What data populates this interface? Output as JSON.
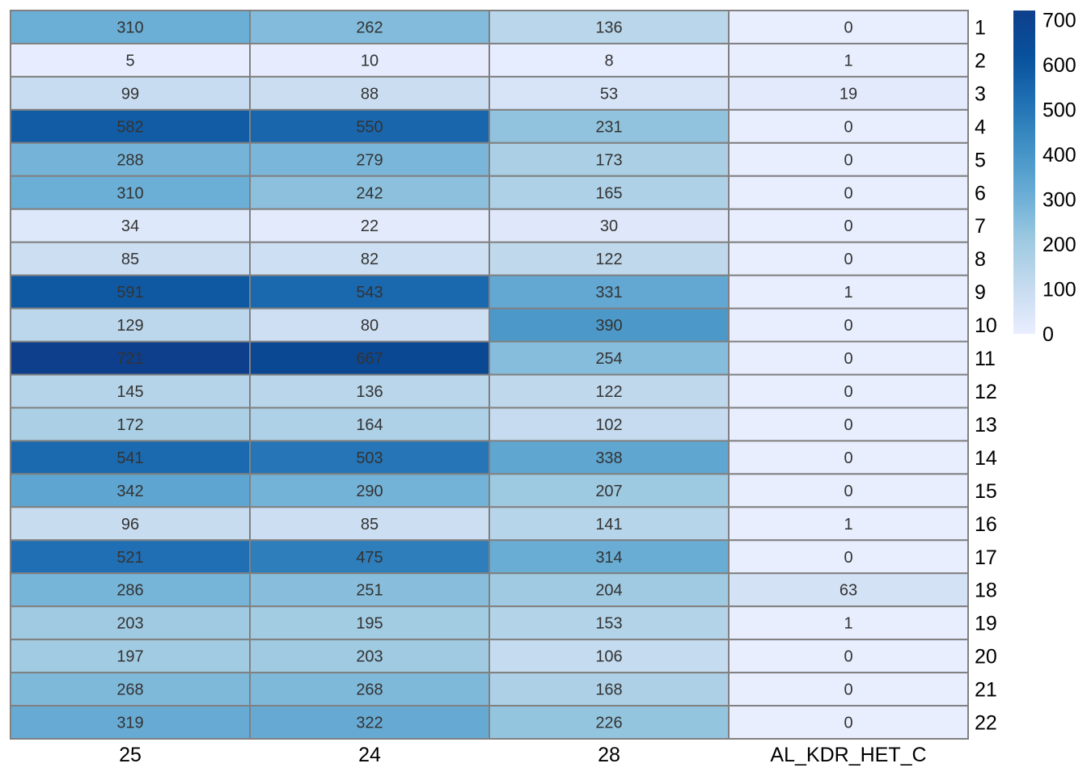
{
  "chart_data": {
    "type": "heatmap",
    "columns": [
      "25",
      "24",
      "28",
      "AL_KDR_HET_C"
    ],
    "rows": [
      "1",
      "2",
      "3",
      "4",
      "5",
      "6",
      "7",
      "8",
      "9",
      "10",
      "11",
      "12",
      "13",
      "14",
      "15",
      "16",
      "17",
      "18",
      "19",
      "20",
      "21",
      "22"
    ],
    "values": [
      [
        310,
        262,
        136,
        0
      ],
      [
        5,
        10,
        8,
        1
      ],
      [
        99,
        88,
        53,
        19
      ],
      [
        582,
        550,
        231,
        0
      ],
      [
        288,
        279,
        173,
        0
      ],
      [
        310,
        242,
        165,
        0
      ],
      [
        34,
        22,
        30,
        0
      ],
      [
        85,
        82,
        122,
        0
      ],
      [
        591,
        543,
        331,
        1
      ],
      [
        129,
        80,
        390,
        0
      ],
      [
        721,
        667,
        254,
        0
      ],
      [
        145,
        136,
        122,
        0
      ],
      [
        172,
        164,
        102,
        0
      ],
      [
        541,
        503,
        338,
        0
      ],
      [
        342,
        290,
        207,
        0
      ],
      [
        96,
        85,
        141,
        1
      ],
      [
        521,
        475,
        314,
        0
      ],
      [
        286,
        251,
        204,
        63
      ],
      [
        203,
        195,
        153,
        1
      ],
      [
        197,
        203,
        106,
        0
      ],
      [
        268,
        268,
        168,
        0
      ],
      [
        319,
        322,
        226,
        0
      ]
    ],
    "color_scale": {
      "min": 0,
      "max": 721,
      "colors": [
        "#e9eeff",
        "#c6dbef",
        "#9ecae1",
        "#6baed6",
        "#4292c6",
        "#2171b5",
        "#08519c",
        "#0e3f8c"
      ]
    },
    "legend": {
      "position": "top-right",
      "ticks": [
        0,
        100,
        200,
        300,
        400,
        500,
        600,
        700
      ]
    },
    "cell_border_color": "#808080",
    "cell_text_color": "#333333"
  }
}
